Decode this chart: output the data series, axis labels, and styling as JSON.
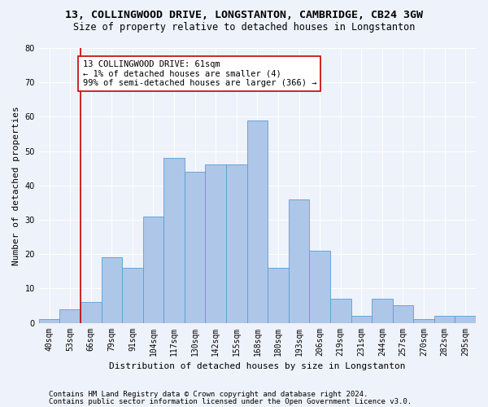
{
  "title_line1": "13, COLLINGWOOD DRIVE, LONGSTANTON, CAMBRIDGE, CB24 3GW",
  "title_line2": "Size of property relative to detached houses in Longstanton",
  "xlabel": "Distribution of detached houses by size in Longstanton",
  "ylabel": "Number of detached properties",
  "categories": [
    "40sqm",
    "53sqm",
    "66sqm",
    "79sqm",
    "91sqm",
    "104sqm",
    "117sqm",
    "130sqm",
    "142sqm",
    "155sqm",
    "168sqm",
    "180sqm",
    "193sqm",
    "206sqm",
    "219sqm",
    "231sqm",
    "244sqm",
    "257sqm",
    "270sqm",
    "282sqm",
    "295sqm"
  ],
  "values": [
    1,
    4,
    6,
    19,
    16,
    31,
    48,
    44,
    46,
    46,
    59,
    16,
    36,
    21,
    7,
    2,
    7,
    5,
    1,
    2,
    2
  ],
  "bar_color": "#aec6e8",
  "bar_edge_color": "#5a9fd4",
  "background_color": "#eef2fa",
  "grid_color": "#ffffff",
  "vline_x": 1.5,
  "vline_color": "#cc0000",
  "annotation_text": "13 COLLINGWOOD DRIVE: 61sqm\n← 1% of detached houses are smaller (4)\n99% of semi-detached houses are larger (366) →",
  "annotation_box_color": "#ffffff",
  "annotation_box_edge": "#cc0000",
  "ylim": [
    0,
    80
  ],
  "yticks": [
    0,
    10,
    20,
    30,
    40,
    50,
    60,
    70,
    80
  ],
  "footer_line1": "Contains HM Land Registry data © Crown copyright and database right 2024.",
  "footer_line2": "Contains public sector information licensed under the Open Government Licence v3.0.",
  "title_fontsize": 9.5,
  "subtitle_fontsize": 8.5,
  "axis_label_fontsize": 8,
  "tick_fontsize": 7,
  "annotation_fontsize": 7.5,
  "footer_fontsize": 6.5
}
